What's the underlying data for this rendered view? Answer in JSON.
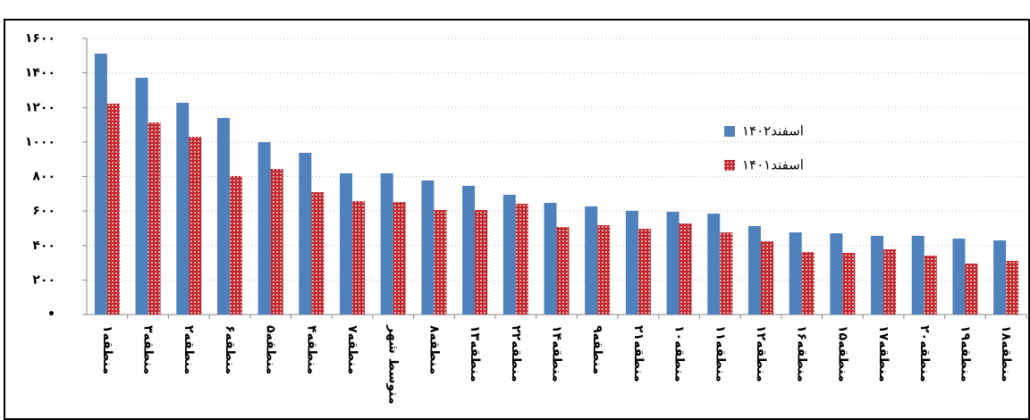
{
  "chart_data": {
    "type": "bar",
    "categories": [
      "منطقه۱",
      "منطقه۳",
      "منطقه۲",
      "منطقه۶",
      "منطقه۵",
      "منطقه۴",
      "منطقه۷",
      "متوسط شهر",
      "منطقه۸",
      "منطقه۱۳",
      "منطقه۲۲",
      "منطقه۱۴",
      "منطقه۹",
      "منطقه۲۱",
      "منطقه۱۰",
      "منطقه۱۱",
      "منطقه۱۲",
      "منطقه۱۶",
      "منطقه۱۵",
      "منطقه۱۷",
      "منطقه۲۰",
      "منطقه۱۹",
      "منطقه۱۸"
    ],
    "series": [
      {
        "name": "اسفند۱۴۰۲",
        "color": "#4f81bd",
        "values": [
          1512,
          1372,
          1227,
          1139,
          999,
          937,
          818,
          818,
          777,
          746,
          694,
          647,
          627,
          601,
          595,
          585,
          513,
          476,
          471,
          456,
          456,
          440,
          430
        ]
      },
      {
        "name": "اسفند۱۴۰۱",
        "color": "#c0282d",
        "values": [
          1222,
          1113,
          1030,
          803,
          844,
          709,
          658,
          652,
          606,
          606,
          642,
          507,
          518,
          497,
          528,
          476,
          425,
          362,
          357,
          378,
          342,
          295,
          311
        ]
      }
    ],
    "ylim": [
      0,
      1600
    ],
    "yticks": [
      {
        "value": 0,
        "label": "•"
      },
      {
        "value": 200,
        "label": "۲۰۰"
      },
      {
        "value": 400,
        "label": "۴۰۰"
      },
      {
        "value": 600,
        "label": "۶۰۰"
      },
      {
        "value": 800,
        "label": "۸۰۰"
      },
      {
        "value": 1000,
        "label": "۱۰۰۰"
      },
      {
        "value": 1200,
        "label": "۱۲۰۰"
      },
      {
        "value": 1400,
        "label": "۱۴۰۰"
      },
      {
        "value": 1600,
        "label": "۱۶۰۰"
      }
    ],
    "grid": true,
    "legend": "upper-right"
  }
}
